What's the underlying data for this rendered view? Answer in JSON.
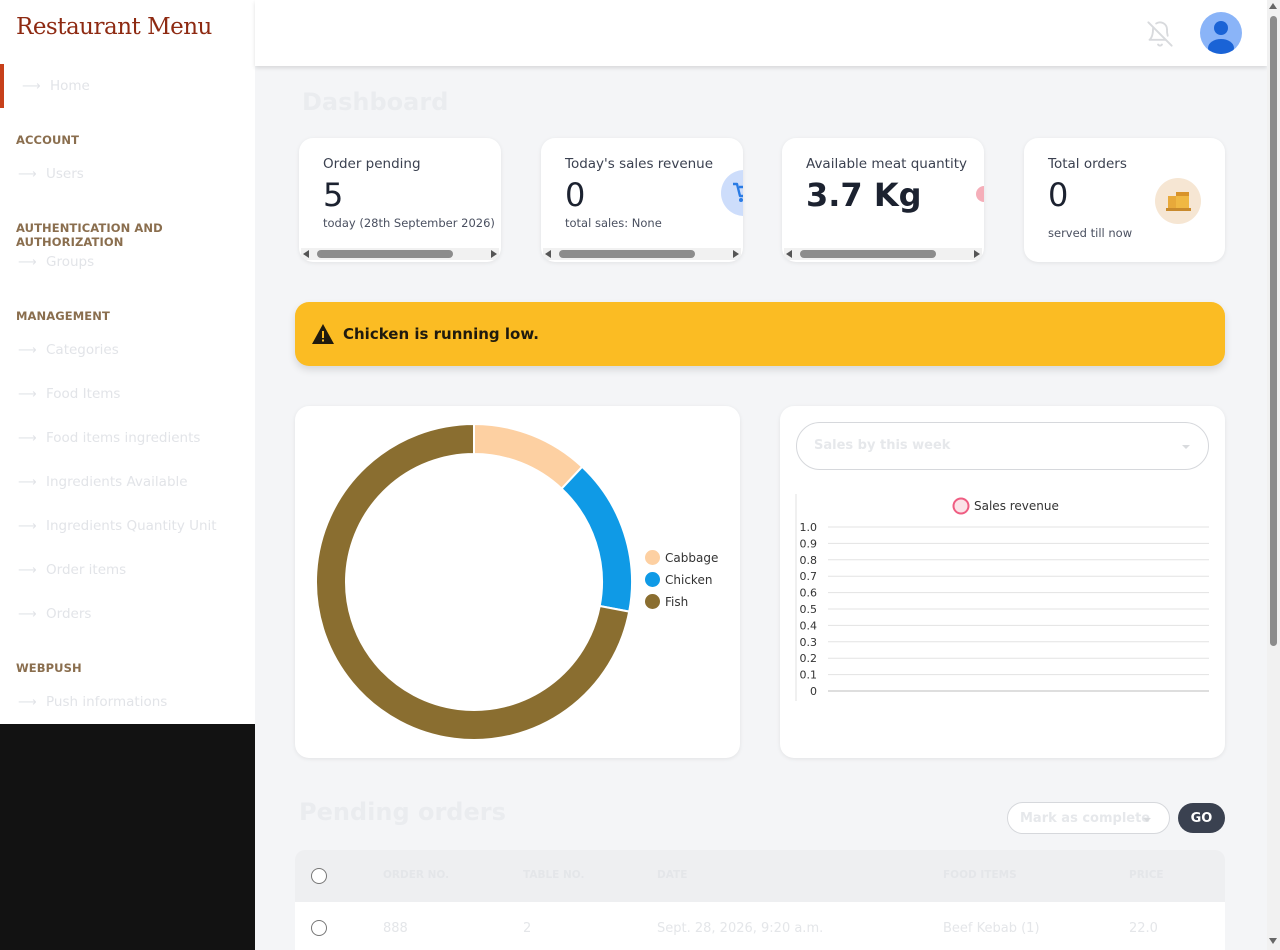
{
  "brand": "Restaurant Menu",
  "sidebar": {
    "home": "Home",
    "sections": [
      {
        "title": "ACCOUNT",
        "items": [
          "Users"
        ]
      },
      {
        "title": "AUTHENTICATION AND AUTHORIZATION",
        "items": [
          "Groups"
        ]
      },
      {
        "title": "MANAGEMENT",
        "items": [
          "Categories",
          "Food Items",
          "Food items ingredients",
          "Ingredients Available",
          "Ingredients Quantity Unit",
          "Order items",
          "Orders"
        ]
      },
      {
        "title": "WEBPUSH",
        "items": [
          "Push informations"
        ]
      }
    ]
  },
  "page_title": "Dashboard",
  "cards": [
    {
      "label": "Order pending",
      "value": "5",
      "sub": "today (28th September 2026)"
    },
    {
      "label": "Today's sales revenue",
      "value": "0",
      "sub": "total sales: None"
    },
    {
      "label": "Available meat quantity",
      "value": "3.7 Kg",
      "sub": ""
    },
    {
      "label": "Total orders",
      "value": "0",
      "sub": "served till now"
    }
  ],
  "alert": "Chicken is running low.",
  "weekly_select": {
    "value": "Sales by this week"
  },
  "pending": {
    "title": "Pending orders",
    "action_select": "Mark as complete",
    "go": "GO",
    "headers": [
      "ORDER NO.",
      "TABLE NO.",
      "DATE",
      "FOOD ITEMS",
      "PRICE"
    ],
    "rows": [
      {
        "order_no": "888",
        "table_no": "2",
        "date": "Sept. 28, 2026, 9:20 a.m.",
        "food_items": "Beef Kebab (1)",
        "price": "22.0"
      }
    ]
  },
  "colors": {
    "brand": "#8e2a12",
    "alert": "#fbbc23",
    "active": "#c7401a"
  },
  "chart_data": [
    {
      "type": "pie",
      "labels": [
        "Cabbage",
        "Chicken",
        "Fish"
      ],
      "values": [
        12,
        16,
        72
      ],
      "colors": [
        "#fdd0a2",
        "#0f9ae6",
        "#8a6e30"
      ],
      "legend": "right"
    },
    {
      "type": "line",
      "series": [
        {
          "name": "Sales revenue",
          "values": []
        }
      ],
      "yticks": [
        "0",
        "0.1",
        "0.2",
        "0.3",
        "0.4",
        "0.5",
        "0.6",
        "0.7",
        "0.8",
        "0.9",
        "1.0"
      ],
      "ylim": [
        0,
        1.0
      ],
      "legend": "top",
      "grid": true
    }
  ]
}
